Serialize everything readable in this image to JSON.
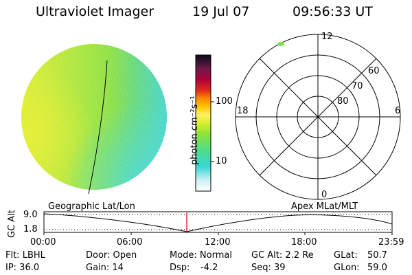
{
  "header": {
    "instrument": "Ultraviolet Imager",
    "date": "19 Jul 07",
    "time": "09:56:33 UT"
  },
  "colorbar": {
    "label": "photon cm⁻²s⁻¹",
    "ticks": [
      "100",
      "10"
    ]
  },
  "polar": {
    "mlt_labels": {
      "top": "12",
      "left": "18",
      "right": "6",
      "bottom": "0"
    },
    "lat_labels": [
      "60",
      "70",
      "80"
    ]
  },
  "timeline": {
    "left_label": "Geographic Lat/Lon",
    "right_label": "Apex MLat/MLT",
    "y_axis_label": "GC Alt",
    "y_ticks": [
      "9.0",
      "1.8"
    ],
    "x_ticks": [
      "00:00",
      "06:00",
      "12:00",
      "18:00",
      "23:59"
    ]
  },
  "info": {
    "filter": "Flt: LBHL",
    "ip": "IP: 36.0",
    "door": "Door: Open",
    "gain": "Gain: 14",
    "mode": "Mode: Normal",
    "dsp": "Dsp:",
    "dsp_value": "-4.2",
    "gc_alt": "GC Alt: 2.2 Re",
    "seq": "Seq: 39",
    "glat": "GLat:",
    "glat_value": "50.7",
    "glon": "GLon:",
    "glon_value": "59.0"
  },
  "colors": {
    "disk_green": "#8fe23a",
    "disk_yellow": "#d7ec2a",
    "disk_cyan": "#41d8c8",
    "marker_red": "#e00000"
  }
}
